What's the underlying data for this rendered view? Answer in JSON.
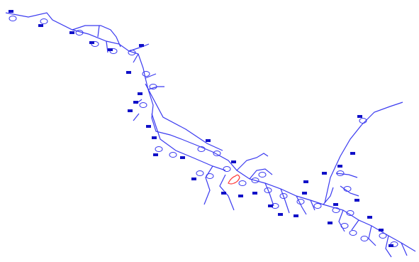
{
  "diagram": {
    "colors": {
      "network_line": "#3a3af0",
      "node_label": "#1010c8",
      "highlight": "#ff3a3a",
      "background": "#ffffff"
    },
    "node_labels": []
  }
}
